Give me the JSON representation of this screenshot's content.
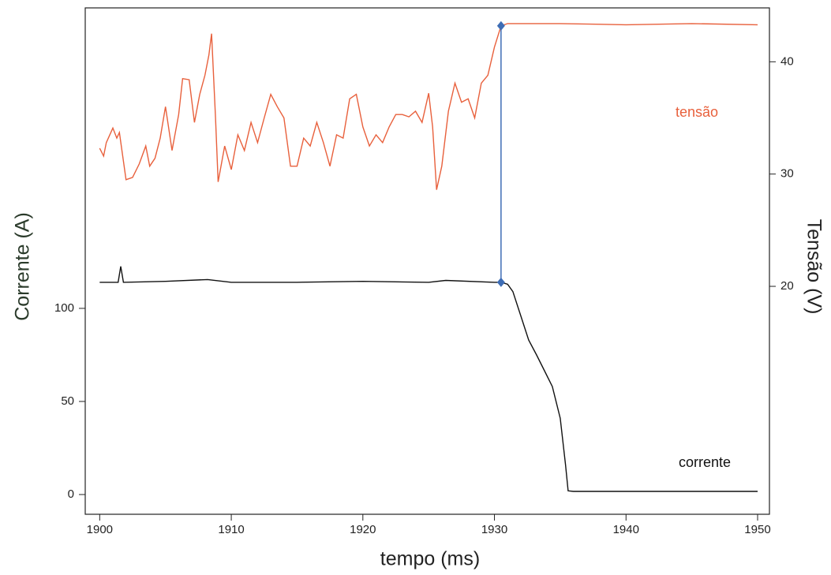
{
  "chart_data": {
    "type": "line",
    "xlabel": "tempo (ms)",
    "ylabel": "Corrente (A)",
    "y2label": "Tensão (V)",
    "xlim": [
      1898.9,
      1950.9
    ],
    "xticks": [
      1900,
      1910,
      1920,
      1930,
      1940,
      1950
    ],
    "ylim": [
      -10.6,
      261.4
    ],
    "yticks": [
      0,
      50,
      100
    ],
    "y2lim": [
      -0.3,
      44.8
    ],
    "y2ticks": [
      20,
      30,
      40
    ],
    "series": [
      {
        "name": "corrente",
        "color": "#111111",
        "axis": "y",
        "x": [
          1900,
          1901,
          1901.4,
          1901.6,
          1901.8,
          1905,
          1908.2,
          1910,
          1915,
          1920,
          1925,
          1926.3,
          1930,
          1930.5,
          1931,
          1931.4,
          1932,
          1932.6,
          1933.2,
          1933.8,
          1934.4,
          1935,
          1935.4,
          1935.6,
          1936,
          1950
        ],
        "values": [
          114,
          114,
          114,
          122.5,
          114,
          114.5,
          115.5,
          114,
          114,
          114.5,
          114,
          115,
          114,
          114,
          113,
          109,
          96,
          83,
          75,
          66.5,
          58,
          41,
          16,
          2,
          1.7,
          1.7
        ]
      },
      {
        "name": "tensão",
        "color": "#e8603c",
        "axis": "y2",
        "x": [
          1900,
          1900.3,
          1900.5,
          1901,
          1901.3,
          1901.5,
          1902,
          1902.5,
          1903,
          1903.5,
          1903.8,
          1904.2,
          1904.6,
          1905,
          1905.5,
          1906,
          1906.3,
          1906.8,
          1907.2,
          1907.6,
          1908,
          1908.3,
          1908.5,
          1908.8,
          1909,
          1909.5,
          1910,
          1910.5,
          1911,
          1911.5,
          1912,
          1912.5,
          1913,
          1913.5,
          1914,
          1914.5,
          1915,
          1915.5,
          1916,
          1916.5,
          1917,
          1917.5,
          1918,
          1918.5,
          1919,
          1919.5,
          1920,
          1920.5,
          1921,
          1921.5,
          1922,
          1922.5,
          1923,
          1923.5,
          1924,
          1924.5,
          1925,
          1925.3,
          1925.6,
          1926,
          1926.5,
          1927,
          1927.5,
          1928,
          1928.5,
          1929,
          1929.5,
          1930,
          1930.5,
          1931,
          1935,
          1940,
          1945,
          1950
        ],
        "values": [
          32.3,
          31.6,
          32.8,
          34.1,
          33.2,
          33.7,
          29.5,
          29.7,
          30.9,
          32.5,
          30.7,
          31.4,
          33.2,
          36.0,
          32.1,
          35.3,
          38.5,
          38.4,
          34.6,
          37.1,
          38.8,
          40.6,
          42.5,
          35.0,
          29.3,
          32.5,
          30.4,
          33.5,
          32.1,
          34.6,
          32.8,
          35.0,
          37.1,
          36.0,
          35.0,
          30.7,
          30.7,
          33.2,
          32.5,
          34.6,
          32.8,
          30.7,
          33.5,
          33.2,
          36.7,
          37.1,
          34.2,
          32.5,
          33.5,
          32.8,
          34.2,
          35.3,
          35.3,
          35.1,
          35.6,
          34.6,
          37.2,
          34.2,
          28.6,
          30.7,
          35.6,
          38.1,
          36.4,
          36.7,
          35.0,
          38.1,
          38.8,
          41.3,
          43.2,
          43.4,
          43.4,
          43.3,
          43.4,
          43.3
        ]
      }
    ],
    "cursor": {
      "x": 1930.5,
      "y": 114,
      "y2": 43.2,
      "color": "#3e6db5"
    }
  }
}
